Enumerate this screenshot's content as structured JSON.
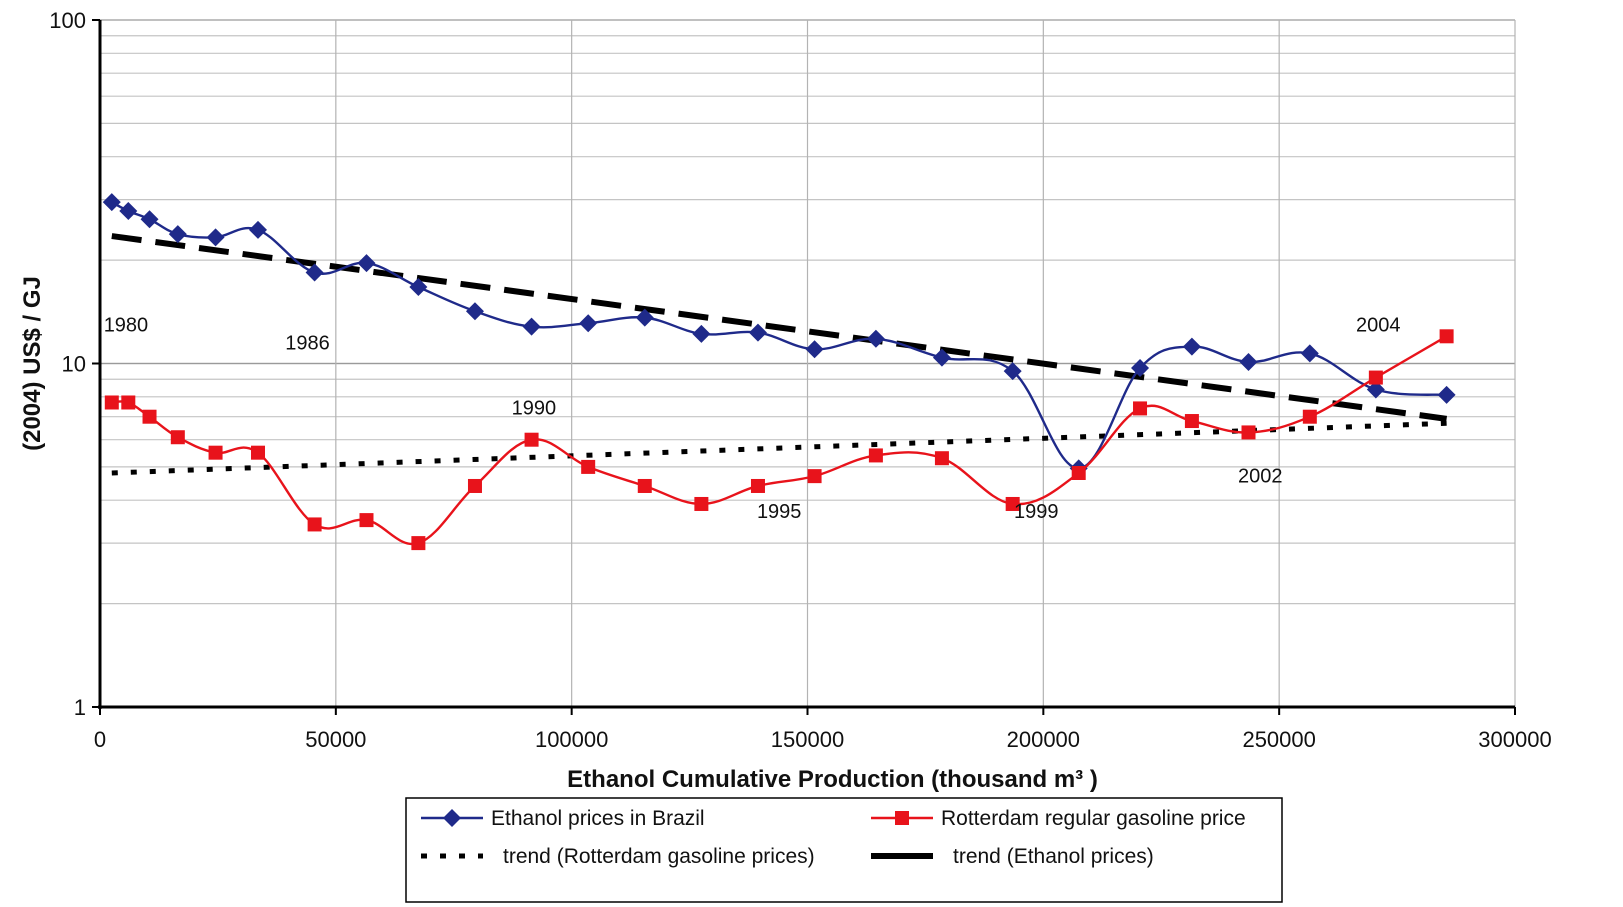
{
  "chart_data": {
    "type": "line",
    "xlabel": "Ethanol Cumulative Production (thousand m³ )",
    "ylabel": "(2004) US$ / GJ",
    "xlim": [
      0,
      300000
    ],
    "ylim": [
      1,
      100
    ],
    "yscale": "log",
    "grid": true,
    "x_ticks": [
      "0",
      "50000",
      "100000",
      "150000",
      "200000",
      "250000",
      "300000"
    ],
    "y_ticks": [
      "1",
      "10",
      "100"
    ],
    "series": [
      {
        "name": "Ethanol prices in Brazil",
        "color": "#1f2a8a",
        "marker": "diamond",
        "x": [
          2500,
          6000,
          10500,
          16500,
          24500,
          33500,
          45500,
          56500,
          67500,
          79500,
          91500,
          103500,
          115500,
          127500,
          139500,
          151500,
          164500,
          178500,
          193500,
          207500,
          220500,
          231500,
          243500,
          256500,
          270500,
          285500
        ],
        "y": [
          29.5,
          27.8,
          26.3,
          23.8,
          23.3,
          24.5,
          18.4,
          19.6,
          16.7,
          14.2,
          12.8,
          13.1,
          13.6,
          12.2,
          12.3,
          11.0,
          11.8,
          10.4,
          9.5,
          4.95,
          9.7,
          11.2,
          10.1,
          10.7,
          8.4,
          8.1
        ]
      },
      {
        "name": "Rotterdam regular gasoline price",
        "color": "#e8131b",
        "marker": "square",
        "x": [
          2500,
          6000,
          10500,
          16500,
          24500,
          33500,
          45500,
          56500,
          67500,
          79500,
          91500,
          103500,
          115500,
          127500,
          139500,
          151500,
          164500,
          178500,
          193500,
          207500,
          220500,
          231500,
          243500,
          256500,
          270500,
          285500
        ],
        "y": [
          7.7,
          7.7,
          7.0,
          6.1,
          5.5,
          5.5,
          3.4,
          3.5,
          3.0,
          4.4,
          6.0,
          5.0,
          4.4,
          3.9,
          4.4,
          4.7,
          5.4,
          5.3,
          3.9,
          4.8,
          7.4,
          6.8,
          6.3,
          7.0,
          9.1,
          12.0
        ]
      },
      {
        "name": "trend (Rotterdam gasoline prices)",
        "color": "#000000",
        "style": "dotted",
        "x": [
          2500,
          285500
        ],
        "y": [
          4.8,
          6.7
        ]
      },
      {
        "name": "trend (Ethanol prices)",
        "color": "#000000",
        "style": "dashed",
        "x": [
          2500,
          285500
        ],
        "y": [
          23.5,
          6.9
        ]
      }
    ],
    "annotations": [
      {
        "text": "1980",
        "x": 5500,
        "y": 12.4
      },
      {
        "text": "1986",
        "x": 44000,
        "y": 11.0
      },
      {
        "text": "1990",
        "x": 92000,
        "y": 7.1
      },
      {
        "text": "1995",
        "x": 144000,
        "y": 3.55
      },
      {
        "text": "1999",
        "x": 198500,
        "y": 3.55
      },
      {
        "text": "2002",
        "x": 246000,
        "y": 4.5
      },
      {
        "text": "2004",
        "x": 271000,
        "y": 12.4
      }
    ],
    "legend_position": "bottom-center"
  }
}
